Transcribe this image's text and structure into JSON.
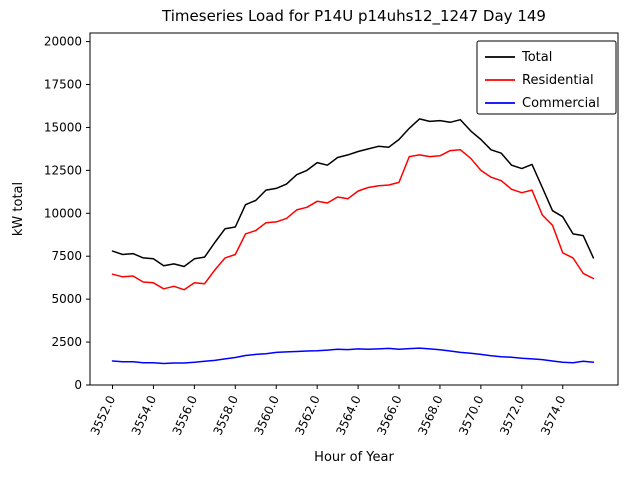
{
  "chart_data": {
    "type": "line",
    "title": "Timeseries Load for P14U p14uhs12_1247  Day 149",
    "xlabel": "Hour of Year",
    "ylabel": "kW total",
    "xlim": [
      3550.9,
      3576.7
    ],
    "ylim": [
      0,
      20500
    ],
    "grid": false,
    "legend_position": "upper right",
    "xticks": {
      "values": [
        3552,
        3554,
        3556,
        3558,
        3560,
        3562,
        3564,
        3566,
        3568,
        3570,
        3572,
        3574
      ],
      "labels": [
        "3552.0",
        "3554.0",
        "3556.0",
        "3558.0",
        "3560.0",
        "3562.0",
        "3564.0",
        "3566.0",
        "3568.0",
        "3570.0",
        "3572.0",
        "3574.0"
      ]
    },
    "yticks": {
      "values": [
        0,
        2500,
        5000,
        7500,
        10000,
        12500,
        15000,
        17500,
        20000
      ],
      "labels": [
        "0",
        "2500",
        "5000",
        "7500",
        "10000",
        "12500",
        "15000",
        "17500",
        "20000"
      ]
    },
    "x": [
      3552.0,
      3552.5,
      3553.0,
      3553.5,
      3554.0,
      3554.5,
      3555.0,
      3555.5,
      3556.0,
      3556.5,
      3557.0,
      3557.5,
      3558.0,
      3558.5,
      3559.0,
      3559.5,
      3560.0,
      3560.5,
      3561.0,
      3561.5,
      3562.0,
      3562.5,
      3563.0,
      3563.5,
      3564.0,
      3564.5,
      3565.0,
      3565.5,
      3566.0,
      3566.5,
      3567.0,
      3567.5,
      3568.0,
      3568.5,
      3569.0,
      3569.5,
      3570.0,
      3570.5,
      3571.0,
      3571.5,
      3572.0,
      3572.5,
      3573.0,
      3573.5,
      3574.0,
      3574.5,
      3575.0,
      3575.5
    ],
    "series": [
      {
        "name": "Total",
        "color": "#000000",
        "values": [
          7800,
          7600,
          7650,
          7400,
          7350,
          6950,
          7050,
          6900,
          7350,
          7450,
          8300,
          9100,
          9200,
          10500,
          10750,
          11350,
          11450,
          11700,
          12250,
          12500,
          12950,
          12800,
          13250,
          13400,
          13600,
          13750,
          13900,
          13850,
          14300,
          14950,
          15500,
          15350,
          15400,
          15300,
          15450,
          14800,
          14300,
          13700,
          13500,
          12800,
          12600,
          12850,
          11500,
          10150,
          9800,
          8800,
          8700,
          7400
        ]
      },
      {
        "name": "Residential",
        "color": "#ff0000",
        "values": [
          6450,
          6300,
          6350,
          6000,
          5950,
          5600,
          5750,
          5550,
          5950,
          5900,
          6700,
          7400,
          7600,
          8800,
          9000,
          9450,
          9500,
          9700,
          10200,
          10350,
          10700,
          10600,
          10950,
          10850,
          11300,
          11500,
          11600,
          11650,
          11800,
          13300,
          13400,
          13300,
          13350,
          13650,
          13700,
          13200,
          12500,
          12100,
          11900,
          11400,
          11200,
          11350,
          9900,
          9300,
          7700,
          7400,
          6500,
          6200
        ]
      },
      {
        "name": "Commercial",
        "color": "#0000ff",
        "values": [
          1400,
          1350,
          1350,
          1300,
          1300,
          1250,
          1280,
          1280,
          1320,
          1380,
          1430,
          1520,
          1600,
          1720,
          1780,
          1820,
          1900,
          1930,
          1950,
          1980,
          2000,
          2030,
          2080,
          2060,
          2100,
          2080,
          2100,
          2130,
          2080,
          2120,
          2150,
          2100,
          2050,
          1980,
          1900,
          1850,
          1780,
          1700,
          1650,
          1620,
          1560,
          1520,
          1480,
          1400,
          1330,
          1300,
          1380,
          1320
        ]
      }
    ]
  }
}
